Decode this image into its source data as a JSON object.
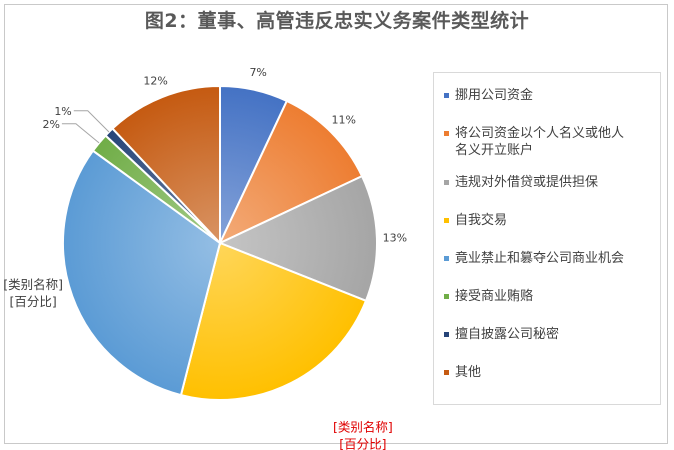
{
  "title": "图2：董事、高管违反忠实义务案件类型统计",
  "chart_data": {
    "type": "pie",
    "title": "图2：董事、高管违反忠实义务案件类型统计",
    "slices": [
      {
        "name": "挪用公司资金",
        "value": 7,
        "label": "7%",
        "color": "#4472c4"
      },
      {
        "name": "将公司资金以个人名义或他人名义开立账户",
        "value": 11,
        "label": "11%",
        "color": "#ed7d31"
      },
      {
        "name": "违规对外借贷或提供担保",
        "value": 13,
        "label": "13%",
        "color": "#a5a5a5"
      },
      {
        "name": "自我交易",
        "value": 23,
        "label": "[类别名称]\n[百分比]",
        "color": "#ffc000"
      },
      {
        "name": "竟业禁止和篡夺公司商业机会",
        "value": 31,
        "label": "[类别名称]\n[百分比]",
        "color": "#5b9bd5"
      },
      {
        "name": "接受商业贿赂",
        "value": 2,
        "label": "2%",
        "color": "#70ad47"
      },
      {
        "name": "擅自披露公司秘密",
        "value": 1,
        "label": "1%",
        "color": "#264478"
      },
      {
        "name": "其他",
        "value": 12,
        "label": "12%",
        "color": "#c55a11"
      }
    ],
    "legend": [
      {
        "text": "挪用公司资金",
        "color": "#4472c4"
      },
      {
        "text": "将公司资金以个人名义或他人\n名义开立账户",
        "color": "#ed7d31"
      },
      {
        "text": "违规对外借贷或提供担保",
        "color": "#a5a5a5"
      },
      {
        "text": "自我交易",
        "color": "#ffc000"
      },
      {
        "text": "竟业禁止和篡夺公司商业机会",
        "color": "#5b9bd5"
      },
      {
        "text": "接受商业贿赂",
        "color": "#70ad47"
      },
      {
        "text": "擅自披露公司秘密",
        "color": "#264478"
      },
      {
        "text": "其他",
        "color": "#c55a11"
      }
    ],
    "legend_position": "right"
  }
}
